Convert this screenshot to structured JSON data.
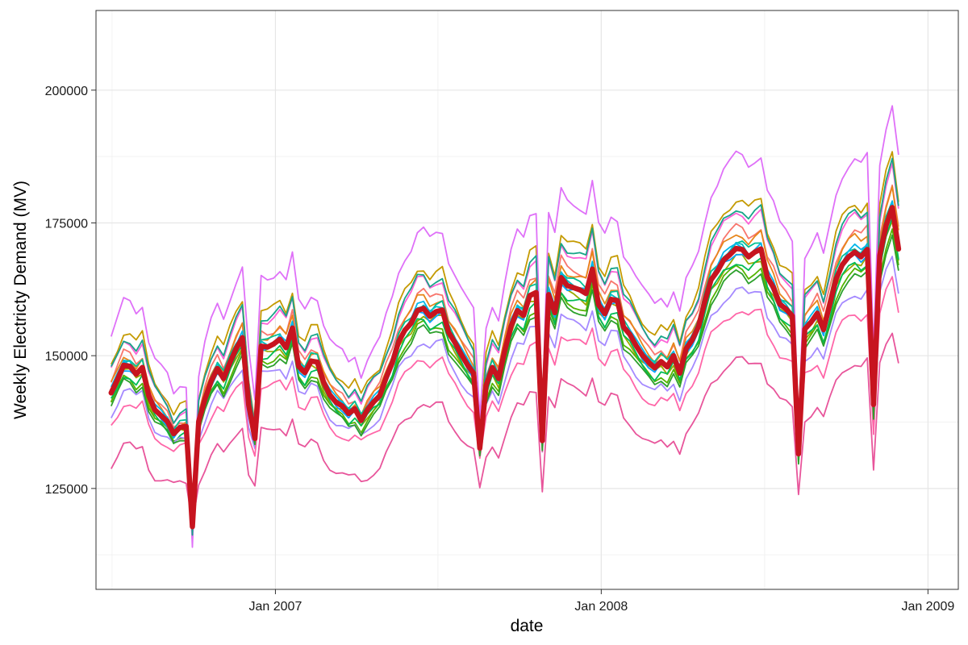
{
  "chart_data": {
    "type": "line",
    "title": "",
    "xlabel": "date",
    "ylabel": "Weekly Electricty Demand (MV)",
    "xlim": [
      "2006-06-14",
      "2009-02-04"
    ],
    "ylim": [
      106000,
      215000
    ],
    "x_ticks": [
      {
        "date": "2007-01-01",
        "label": "Jan 2007"
      },
      {
        "date": "2008-01-01",
        "label": "Jan 2008"
      },
      {
        "date": "2009-01-01",
        "label": "Jan 2009"
      }
    ],
    "y_ticks": [
      {
        "value": 125000,
        "label": "125000"
      },
      {
        "value": 150000,
        "label": "150000"
      },
      {
        "value": 175000,
        "label": "175000"
      },
      {
        "value": 200000,
        "label": "200000"
      }
    ],
    "grid": true,
    "legend": "none",
    "mean_series": {
      "color": "#c7141f",
      "points": [
        [
          "2006-07-01",
          143000
        ],
        [
          "2006-07-08",
          145500
        ],
        [
          "2006-07-15",
          148200
        ],
        [
          "2006-07-22",
          148000
        ],
        [
          "2006-07-29",
          146500
        ],
        [
          "2006-08-05",
          147800
        ],
        [
          "2006-08-12",
          142500
        ],
        [
          "2006-08-19",
          139800
        ],
        [
          "2006-08-26",
          138700
        ],
        [
          "2006-09-02",
          137600
        ],
        [
          "2006-09-09",
          135300
        ],
        [
          "2006-09-16",
          136500
        ],
        [
          "2006-09-23",
          136700
        ],
        [
          "2006-09-30",
          117800
        ],
        [
          "2006-10-07",
          137600
        ],
        [
          "2006-10-14",
          141800
        ],
        [
          "2006-10-21",
          145200
        ],
        [
          "2006-10-28",
          147600
        ],
        [
          "2006-11-04",
          145700
        ],
        [
          "2006-11-11",
          148700
        ],
        [
          "2006-11-18",
          151300
        ],
        [
          "2006-11-25",
          153400
        ],
        [
          "2006-12-02",
          140800
        ],
        [
          "2006-12-09",
          134400
        ],
        [
          "2006-12-16",
          151800
        ],
        [
          "2006-12-23",
          151600
        ],
        [
          "2006-12-30",
          152200
        ],
        [
          "2007-01-06",
          153100
        ],
        [
          "2007-01-13",
          151500
        ],
        [
          "2007-01-20",
          155200
        ],
        [
          "2007-01-27",
          148000
        ],
        [
          "2007-02-03",
          146800
        ],
        [
          "2007-02-10",
          149000
        ],
        [
          "2007-02-17",
          148800
        ],
        [
          "2007-02-24",
          145000
        ],
        [
          "2007-03-03",
          142600
        ],
        [
          "2007-03-10",
          141200
        ],
        [
          "2007-03-17",
          140500
        ],
        [
          "2007-03-24",
          139100
        ],
        [
          "2007-03-31",
          140000
        ],
        [
          "2007-04-07",
          137800
        ],
        [
          "2007-04-14",
          139800
        ],
        [
          "2007-04-21",
          141300
        ],
        [
          "2007-04-28",
          142500
        ],
        [
          "2007-05-05",
          145900
        ],
        [
          "2007-05-12",
          148700
        ],
        [
          "2007-05-19",
          152600
        ],
        [
          "2007-05-26",
          154800
        ],
        [
          "2007-06-02",
          156100
        ],
        [
          "2007-06-09",
          158500
        ],
        [
          "2007-06-16",
          158900
        ],
        [
          "2007-06-23",
          157400
        ],
        [
          "2007-06-30",
          158300
        ],
        [
          "2007-07-07",
          158600
        ],
        [
          "2007-07-14",
          154400
        ],
        [
          "2007-07-21",
          152500
        ],
        [
          "2007-07-28",
          150300
        ],
        [
          "2007-08-04",
          148300
        ],
        [
          "2007-08-11",
          146700
        ],
        [
          "2007-08-18",
          132600
        ],
        [
          "2007-08-25",
          144400
        ],
        [
          "2007-09-01",
          147800
        ],
        [
          "2007-09-08",
          145700
        ],
        [
          "2007-09-15",
          151000
        ],
        [
          "2007-09-22",
          155600
        ],
        [
          "2007-09-29",
          158500
        ],
        [
          "2007-10-06",
          157600
        ],
        [
          "2007-10-13",
          161300
        ],
        [
          "2007-10-20",
          161900
        ],
        [
          "2007-10-27",
          134000
        ],
        [
          "2007-11-03",
          161500
        ],
        [
          "2007-11-10",
          158100
        ],
        [
          "2007-11-17",
          164700
        ],
        [
          "2007-11-24",
          163200
        ],
        [
          "2007-12-01",
          162800
        ],
        [
          "2007-12-08",
          162400
        ],
        [
          "2007-12-15",
          161700
        ],
        [
          "2007-12-22",
          166300
        ],
        [
          "2007-12-29",
          159600
        ],
        [
          "2008-01-05",
          157900
        ],
        [
          "2008-01-12",
          160600
        ],
        [
          "2008-01-19",
          160400
        ],
        [
          "2008-01-26",
          155400
        ],
        [
          "2008-02-02",
          154000
        ],
        [
          "2008-02-09",
          151900
        ],
        [
          "2008-02-16",
          150100
        ],
        [
          "2008-02-23",
          148800
        ],
        [
          "2008-03-01",
          147700
        ],
        [
          "2008-03-08",
          148900
        ],
        [
          "2008-03-15",
          147900
        ],
        [
          "2008-03-22",
          150000
        ],
        [
          "2008-03-29",
          146700
        ],
        [
          "2008-04-05",
          151300
        ],
        [
          "2008-04-12",
          153000
        ],
        [
          "2008-04-19",
          155500
        ],
        [
          "2008-04-26",
          160200
        ],
        [
          "2008-05-03",
          164300
        ],
        [
          "2008-05-10",
          165900
        ],
        [
          "2008-05-17",
          168000
        ],
        [
          "2008-05-24",
          169000
        ],
        [
          "2008-05-31",
          170200
        ],
        [
          "2008-06-07",
          170000
        ],
        [
          "2008-06-14",
          168600
        ],
        [
          "2008-06-21",
          169500
        ],
        [
          "2008-06-28",
          170100
        ],
        [
          "2008-07-05",
          164800
        ],
        [
          "2008-07-12",
          162800
        ],
        [
          "2008-07-19",
          159700
        ],
        [
          "2008-07-26",
          158800
        ],
        [
          "2008-08-02",
          157500
        ],
        [
          "2008-08-09",
          131500
        ],
        [
          "2008-08-16",
          155000
        ],
        [
          "2008-08-23",
          156300
        ],
        [
          "2008-08-30",
          158000
        ],
        [
          "2008-09-06",
          154900
        ],
        [
          "2008-09-13",
          159600
        ],
        [
          "2008-09-20",
          164400
        ],
        [
          "2008-09-27",
          167100
        ],
        [
          "2008-10-04",
          168600
        ],
        [
          "2008-10-11",
          169500
        ],
        [
          "2008-10-18",
          168600
        ],
        [
          "2008-10-25",
          170000
        ],
        [
          "2008-11-01",
          140800
        ],
        [
          "2008-11-08",
          168900
        ],
        [
          "2008-11-15",
          174500
        ],
        [
          "2008-11-22",
          177900
        ],
        [
          "2008-11-29",
          170100
        ]
      ]
    },
    "member_series": [
      {
        "color": "#f8766d",
        "offset": 2500,
        "spread": 0.25
      },
      {
        "color": "#e7861b",
        "offset": 1800,
        "spread": 0.18
      },
      {
        "color": "#c49a00",
        "offset": 6500,
        "spread": 0.45
      },
      {
        "color": "#9ba800",
        "offset": -1200,
        "spread": -0.08
      },
      {
        "color": "#53b400",
        "offset": -2500,
        "spread": -0.18
      },
      {
        "color": "#00bc56",
        "offset": -1800,
        "spread": -0.1
      },
      {
        "color": "#00c094",
        "offset": 900,
        "spread": 0.05
      },
      {
        "color": "#00bfc4",
        "offset": 300,
        "spread": 0.02
      },
      {
        "color": "#00b6eb",
        "offset": 600,
        "spread": 0.04
      },
      {
        "color": "#06a4ff",
        "offset": -400,
        "spread": -0.02
      },
      {
        "color": "#a58aff",
        "offset": -5000,
        "spread": -0.45
      },
      {
        "color": "#df70f8",
        "offset": 12500,
        "spread": 0.85
      },
      {
        "color": "#fb61d7",
        "offset": 4800,
        "spread": 0.35
      },
      {
        "color": "#ff66a8",
        "offset": -7500,
        "spread": -0.7
      },
      {
        "color": "#e8559b",
        "offset": -15500,
        "spread": -0.9
      },
      {
        "color": "#2ca02c",
        "offset": -3200,
        "spread": -0.22
      },
      {
        "color": "#17a589",
        "offset": 5200,
        "spread": 0.4
      }
    ]
  }
}
